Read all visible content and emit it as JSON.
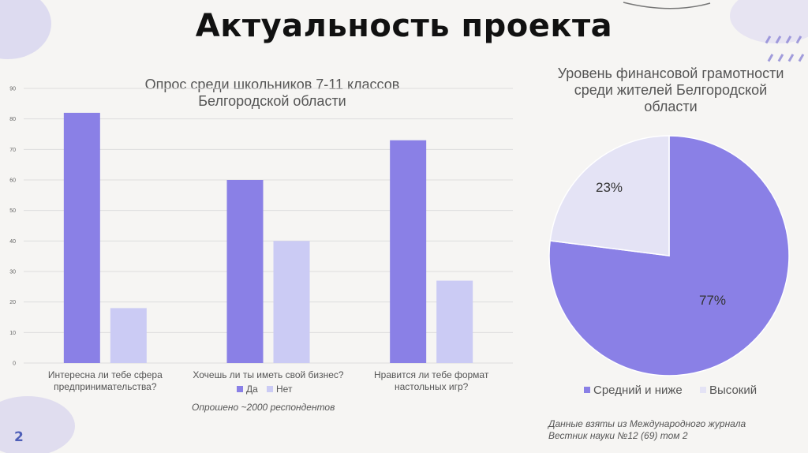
{
  "slide": {
    "title": "Актуальность проекта",
    "page_number": "2",
    "respondents_note": "Опрошено ~2000 респондентов",
    "source_note": "Данные взяты из Международного журнала Вестник науки №12 (69) том 2"
  },
  "colors": {
    "primary": "#8a80e6",
    "secondary": "#cbcbf4",
    "pie_secondary": "#e4e3f5"
  },
  "chart_data": [
    {
      "type": "bar",
      "title": "Опрос среди школьников 7-11 классов Белгородской области",
      "categories": [
        "Интересна ли тебе сфера предпринимательства?",
        "Хочешь ли ты иметь свой бизнес?",
        "Нравится ли тебе формат настольных игр?"
      ],
      "category_lines": [
        [
          "Интересна ли тебе сфера",
          "предпринимательства?"
        ],
        [
          "Хочешь ли ты иметь свой бизнес?"
        ],
        [
          "Нравится ли тебе формат",
          "настольных игр?"
        ]
      ],
      "series": [
        {
          "name": "Да",
          "values": [
            82,
            60,
            73
          ]
        },
        {
          "name": "Нет",
          "values": [
            18,
            40,
            27
          ]
        }
      ],
      "ylim": [
        0,
        90
      ],
      "yticks": [
        0,
        10,
        20,
        30,
        40,
        50,
        60,
        70,
        80,
        90
      ],
      "grid": true,
      "legend": "bottom"
    },
    {
      "type": "pie",
      "title": "Уровень финансовой грамотности среди жителей Белгородской области",
      "labels": [
        "Средний и ниже",
        "Высокий"
      ],
      "values": [
        77,
        23
      ],
      "data_labels": [
        "77%",
        "23%"
      ],
      "legend": "bottom"
    }
  ]
}
